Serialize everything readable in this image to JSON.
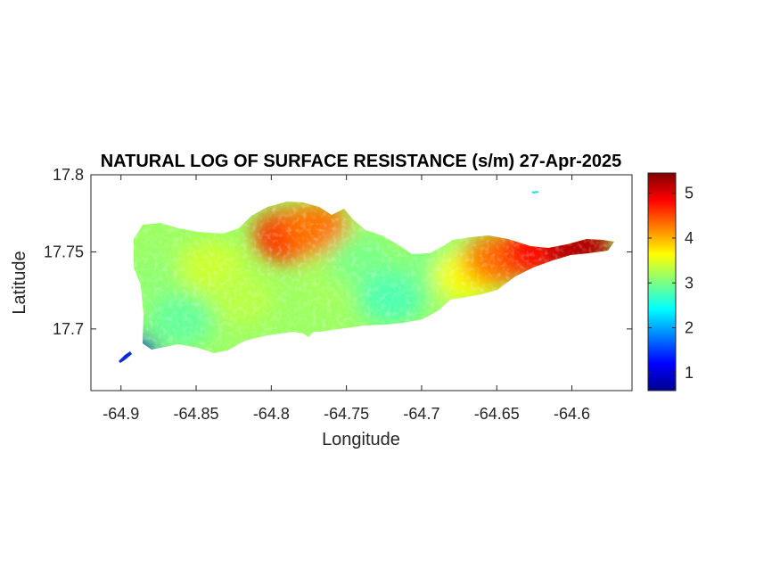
{
  "chart_data": {
    "type": "heatmap",
    "title": "NATURAL LOG OF SURFACE RESISTANCE (s/m) 27-Apr-2025",
    "xlabel": "Longitude",
    "ylabel": "Latitude",
    "xlim": [
      -64.92,
      -64.56
    ],
    "ylim": [
      17.66,
      17.8
    ],
    "xticks": [
      -64.9,
      -64.85,
      -64.8,
      -64.75,
      -64.7,
      -64.65,
      -64.6
    ],
    "xtick_labels": [
      "-64.9",
      "-64.85",
      "-64.8",
      "-64.75",
      "-64.7",
      "-64.65",
      "-64.6"
    ],
    "yticks": [
      17.7,
      17.75,
      17.8
    ],
    "ytick_labels": [
      "17.7",
      "17.75",
      "17.8"
    ],
    "colormap": "jet",
    "clim": [
      0.6,
      5.45
    ],
    "colorbar_ticks": [
      1,
      2,
      3,
      4,
      5
    ],
    "colorbar_tick_labels": [
      "1",
      "2",
      "3",
      "4",
      "5"
    ],
    "grid": false,
    "regions": [
      {
        "lon": -64.875,
        "lat": 17.73,
        "value": 3.1
      },
      {
        "lon": -64.86,
        "lat": 17.705,
        "value": 2.9
      },
      {
        "lon": -64.84,
        "lat": 17.74,
        "value": 3.4
      },
      {
        "lon": -64.82,
        "lat": 17.72,
        "value": 3.3
      },
      {
        "lon": -64.79,
        "lat": 17.76,
        "value": 4.6
      },
      {
        "lon": -64.77,
        "lat": 17.765,
        "value": 4.3
      },
      {
        "lon": -64.76,
        "lat": 17.73,
        "value": 3.2
      },
      {
        "lon": -64.74,
        "lat": 17.745,
        "value": 3.0
      },
      {
        "lon": -64.72,
        "lat": 17.72,
        "value": 2.8
      },
      {
        "lon": -64.69,
        "lat": 17.74,
        "value": 3.0
      },
      {
        "lon": -64.67,
        "lat": 17.735,
        "value": 3.6
      },
      {
        "lon": -64.65,
        "lat": 17.745,
        "value": 4.3
      },
      {
        "lon": -64.625,
        "lat": 17.75,
        "value": 4.8
      },
      {
        "lon": -64.595,
        "lat": 17.753,
        "value": 5.2
      },
      {
        "lon": -64.897,
        "lat": 17.68,
        "value": 0.9
      }
    ]
  }
}
